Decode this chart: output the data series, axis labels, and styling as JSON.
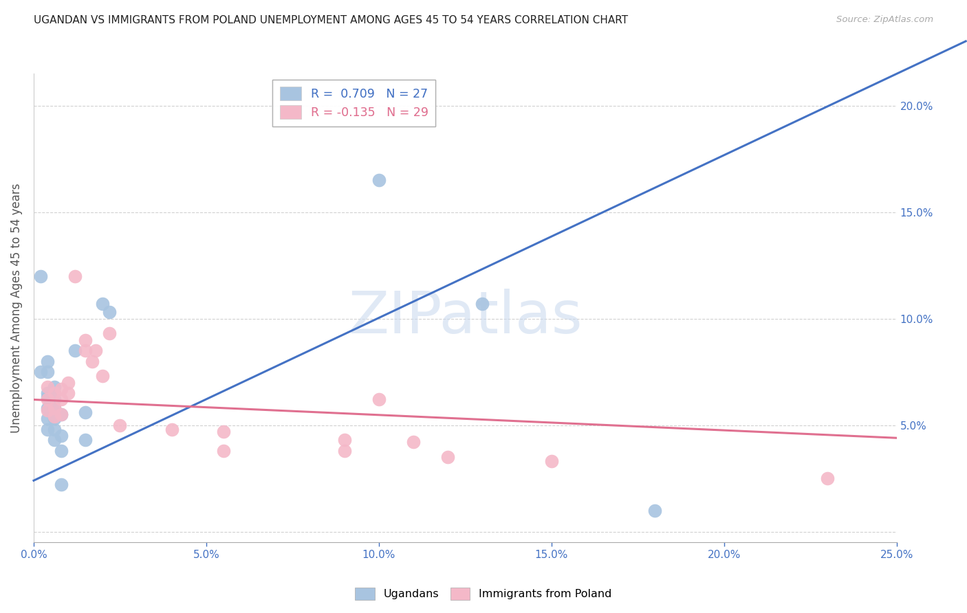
{
  "title": "UGANDAN VS IMMIGRANTS FROM POLAND UNEMPLOYMENT AMONG AGES 45 TO 54 YEARS CORRELATION CHART",
  "source": "Source: ZipAtlas.com",
  "ylabel": "Unemployment Among Ages 45 to 54 years",
  "xlim": [
    0.0,
    0.25
  ],
  "ylim": [
    -0.005,
    0.215
  ],
  "ytick_values": [
    0.0,
    0.05,
    0.1,
    0.15,
    0.2
  ],
  "ytick_labels": [
    "",
    "5.0%",
    "10.0%",
    "15.0%",
    "20.0%"
  ],
  "xtick_values": [
    0.0,
    0.05,
    0.1,
    0.15,
    0.2,
    0.25
  ],
  "xtick_labels": [
    "0.0%",
    "5.0%",
    "10.0%",
    "15.0%",
    "20.0%",
    "25.0%"
  ],
  "ugandan_color": "#a8c4e0",
  "poland_color": "#f4b8c8",
  "ugandan_line_color": "#4472c4",
  "poland_line_color": "#e07090",
  "ugandan_R": 0.709,
  "ugandan_N": 27,
  "poland_R": -0.135,
  "poland_N": 29,
  "ugandan_points": [
    [
      0.002,
      0.12
    ],
    [
      0.002,
      0.075
    ],
    [
      0.004,
      0.08
    ],
    [
      0.004,
      0.075
    ],
    [
      0.004,
      0.065
    ],
    [
      0.004,
      0.063
    ],
    [
      0.004,
      0.058
    ],
    [
      0.004,
      0.053
    ],
    [
      0.004,
      0.048
    ],
    [
      0.006,
      0.068
    ],
    [
      0.006,
      0.062
    ],
    [
      0.006,
      0.058
    ],
    [
      0.006,
      0.053
    ],
    [
      0.006,
      0.048
    ],
    [
      0.006,
      0.043
    ],
    [
      0.008,
      0.055
    ],
    [
      0.008,
      0.045
    ],
    [
      0.008,
      0.038
    ],
    [
      0.008,
      0.022
    ],
    [
      0.012,
      0.085
    ],
    [
      0.015,
      0.056
    ],
    [
      0.015,
      0.043
    ],
    [
      0.02,
      0.107
    ],
    [
      0.022,
      0.103
    ],
    [
      0.1,
      0.165
    ],
    [
      0.13,
      0.107
    ],
    [
      0.18,
      0.01
    ]
  ],
  "poland_points": [
    [
      0.004,
      0.068
    ],
    [
      0.004,
      0.062
    ],
    [
      0.004,
      0.057
    ],
    [
      0.006,
      0.065
    ],
    [
      0.006,
      0.058
    ],
    [
      0.006,
      0.054
    ],
    [
      0.008,
      0.067
    ],
    [
      0.008,
      0.062
    ],
    [
      0.008,
      0.055
    ],
    [
      0.01,
      0.07
    ],
    [
      0.01,
      0.065
    ],
    [
      0.012,
      0.12
    ],
    [
      0.015,
      0.09
    ],
    [
      0.015,
      0.085
    ],
    [
      0.017,
      0.08
    ],
    [
      0.018,
      0.085
    ],
    [
      0.02,
      0.073
    ],
    [
      0.022,
      0.093
    ],
    [
      0.025,
      0.05
    ],
    [
      0.04,
      0.048
    ],
    [
      0.055,
      0.047
    ],
    [
      0.055,
      0.038
    ],
    [
      0.09,
      0.043
    ],
    [
      0.09,
      0.038
    ],
    [
      0.1,
      0.062
    ],
    [
      0.11,
      0.042
    ],
    [
      0.12,
      0.035
    ],
    [
      0.15,
      0.033
    ],
    [
      0.23,
      0.025
    ]
  ],
  "ugandan_line": [
    0.0,
    0.024,
    0.25,
    0.215
  ],
  "poland_line": [
    0.0,
    0.062,
    0.25,
    0.044
  ],
  "watermark_text": "ZIPatlas",
  "background_color": "#ffffff",
  "grid_color": "#cccccc",
  "title_color": "#222222",
  "axis_label_color": "#555555",
  "right_tick_color": "#4472c4",
  "bottom_tick_color": "#4472c4"
}
